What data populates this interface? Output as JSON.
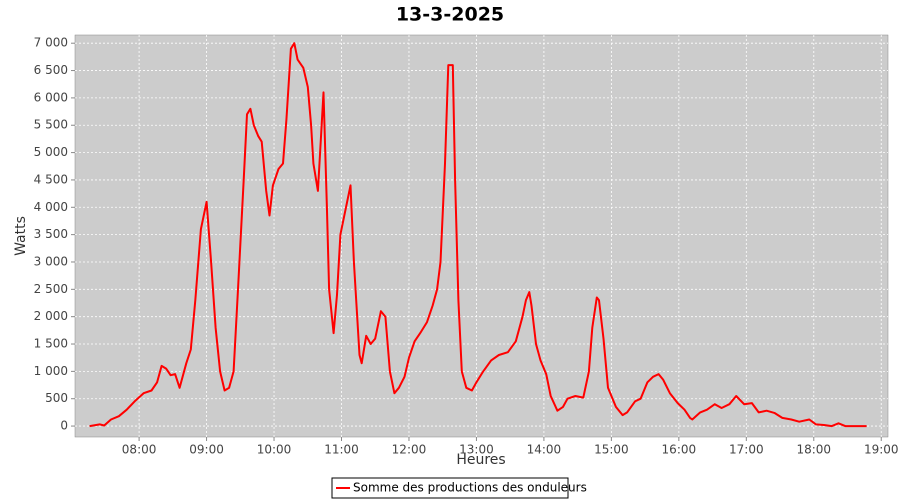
{
  "chart_data": {
    "type": "line",
    "title": "13-3-2025",
    "x_label": "Heures",
    "y_label": "Watts",
    "x": [
      "07:16",
      "07:25",
      "07:29",
      "07:35",
      "07:42",
      "07:49",
      "07:56",
      "08:04",
      "08:11",
      "08:16",
      "08:20",
      "08:24",
      "08:28",
      "08:32",
      "08:36",
      "08:42",
      "08:46",
      "08:50",
      "08:55",
      "09:00",
      "09:04",
      "09:08",
      "09:12",
      "09:16",
      "09:20",
      "09:24",
      "09:28",
      "09:33",
      "09:36",
      "09:39",
      "09:42",
      "09:46",
      "09:49",
      "09:53",
      "09:56",
      "09:59",
      "10:04",
      "10:08",
      "10:11",
      "10:15",
      "10:18",
      "10:21",
      "10:26",
      "10:30",
      "10:33",
      "10:35",
      "10:39",
      "10:41",
      "10:44",
      "10:47",
      "10:49",
      "10:53",
      "10:56",
      "10:59",
      "11:04",
      "11:08",
      "11:11",
      "11:16",
      "11:18",
      "11:22",
      "11:26",
      "11:30",
      "11:35",
      "11:39",
      "11:43",
      "11:47",
      "11:51",
      "11:56",
      "12:00",
      "12:05",
      "12:10",
      "12:16",
      "12:21",
      "12:25",
      "12:28",
      "12:32",
      "12:35",
      "12:39",
      "12:41",
      "12:44",
      "12:47",
      "12:51",
      "12:56",
      "13:00",
      "13:06",
      "13:13",
      "13:20",
      "13:28",
      "13:35",
      "13:41",
      "13:44",
      "13:47",
      "13:49",
      "13:53",
      "13:57",
      "14:02",
      "14:06",
      "14:12",
      "14:17",
      "14:21",
      "14:28",
      "14:35",
      "14:40",
      "14:43",
      "14:47",
      "14:49",
      "14:53",
      "14:57",
      "15:04",
      "15:10",
      "15:14",
      "15:21",
      "15:26",
      "15:32",
      "15:37",
      "15:42",
      "15:46",
      "15:52",
      "15:59",
      "16:05",
      "16:10",
      "16:12",
      "16:19",
      "16:25",
      "16:32",
      "16:38",
      "16:45",
      "16:51",
      "16:58",
      "17:05",
      "17:11",
      "17:18",
      "17:25",
      "17:32",
      "17:40",
      "17:47",
      "17:56",
      "18:02",
      "18:09",
      "18:16",
      "18:22",
      "18:28",
      "18:47"
    ],
    "series": [
      {
        "name": "Somme des productions des onduleurs",
        "color": "#ff0000",
        "values": [
          0,
          30,
          10,
          120,
          180,
          300,
          450,
          600,
          650,
          800,
          1100,
          1050,
          930,
          950,
          700,
          1150,
          1400,
          2300,
          3600,
          4100,
          3000,
          1800,
          1000,
          650,
          700,
          1000,
          2500,
          4500,
          5700,
          5800,
          5500,
          5300,
          5200,
          4300,
          3850,
          4400,
          4700,
          4800,
          5600,
          6900,
          7000,
          6700,
          6550,
          6200,
          5500,
          4800,
          4300,
          5000,
          6100,
          4000,
          2500,
          1700,
          2400,
          3500,
          4000,
          4400,
          3000,
          1300,
          1150,
          1650,
          1500,
          1600,
          2100,
          2000,
          1000,
          600,
          700,
          900,
          1250,
          1550,
          1700,
          1900,
          2200,
          2500,
          3000,
          4800,
          6600,
          6600,
          4500,
          2300,
          1000,
          700,
          650,
          800,
          1000,
          1200,
          1300,
          1350,
          1550,
          2000,
          2300,
          2450,
          2200,
          1500,
          1200,
          950,
          550,
          280,
          350,
          500,
          550,
          520,
          1000,
          1800,
          2350,
          2300,
          1600,
          700,
          350,
          200,
          250,
          450,
          500,
          800,
          900,
          950,
          850,
          600,
          420,
          300,
          150,
          120,
          250,
          300,
          400,
          330,
          400,
          550,
          400,
          420,
          250,
          280,
          240,
          150,
          120,
          80,
          120,
          30,
          20,
          0,
          50,
          0,
          0
        ]
      }
    ],
    "xlim": [
      "07:03",
      "19:06"
    ],
    "xticks": [
      "08:00",
      "09:00",
      "10:00",
      "11:00",
      "12:00",
      "13:00",
      "14:00",
      "15:00",
      "16:00",
      "17:00",
      "18:00",
      "19:00"
    ],
    "ylim": [
      -200,
      7150
    ],
    "yticks": [
      0,
      500,
      {
        "value": 1000,
        "label": "1 000"
      },
      {
        "value": 1500,
        "label": "1 500"
      },
      {
        "value": 2000,
        "label": "2 000"
      },
      {
        "value": 2500,
        "label": "2 500"
      },
      {
        "value": 3000,
        "label": "3 000"
      },
      {
        "value": 3500,
        "label": "3 500"
      },
      {
        "value": 4000,
        "label": "4 000"
      },
      {
        "value": 4500,
        "label": "4 500"
      },
      {
        "value": 5000,
        "label": "5 000"
      },
      {
        "value": 5500,
        "label": "5 500"
      },
      {
        "value": 6000,
        "label": "6 000"
      },
      {
        "value": 6500,
        "label": "6 500"
      },
      {
        "value": 7000,
        "label": "7 000"
      }
    ],
    "grid": true,
    "legend": "bottom"
  }
}
